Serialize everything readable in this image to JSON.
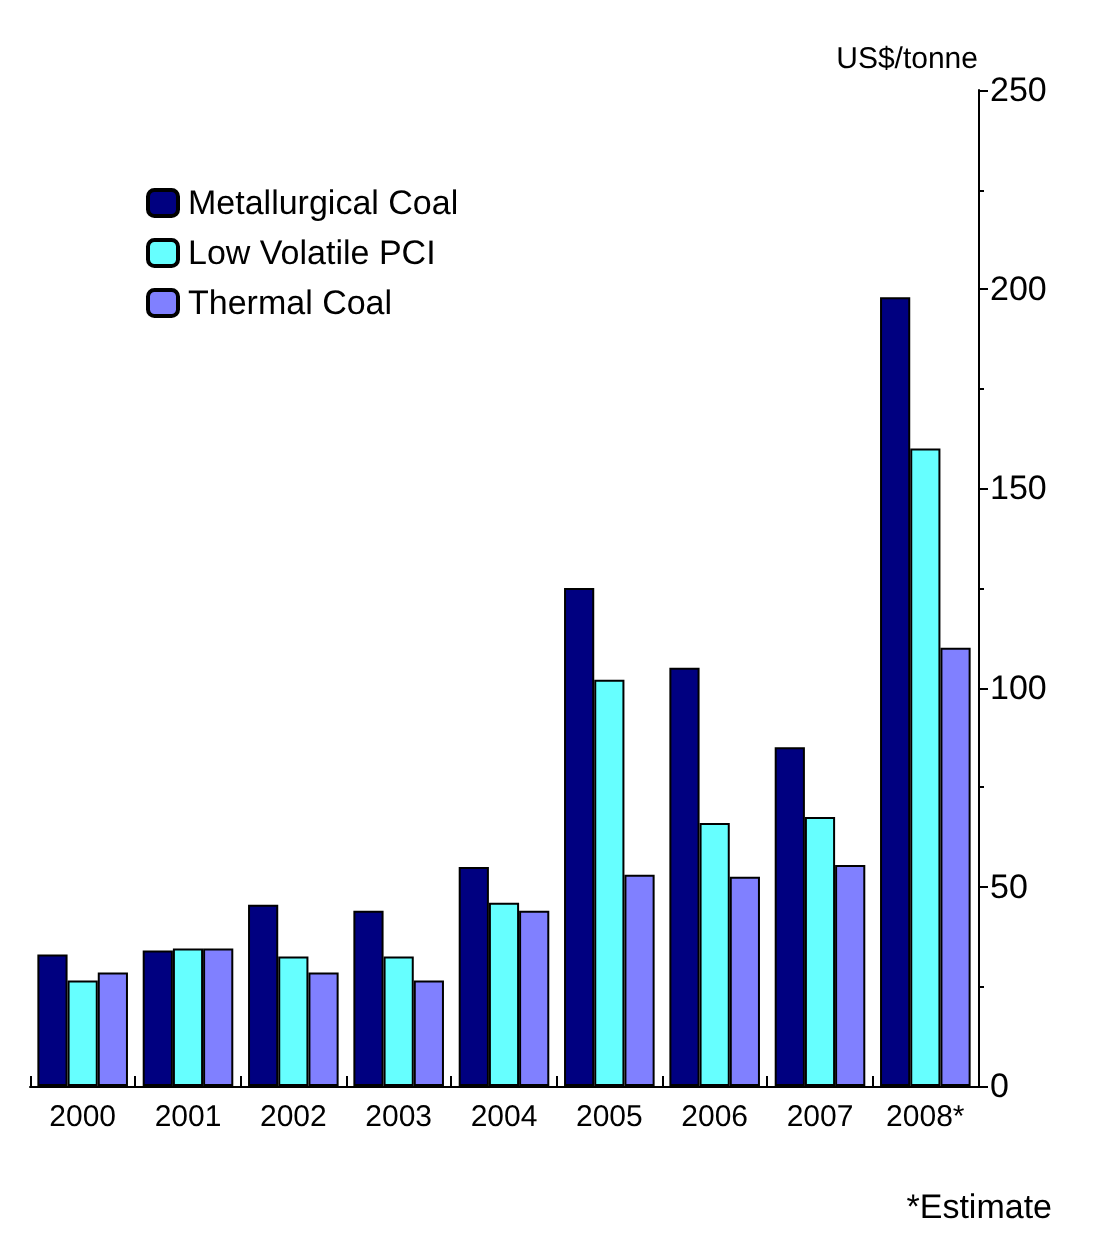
{
  "chart_data": {
    "type": "bar",
    "ylabel": "US$/tonne",
    "categories": [
      "2000",
      "2001",
      "2002",
      "2003",
      "2004",
      "2005",
      "2006",
      "2007",
      "2008*"
    ],
    "series": [
      {
        "name": "Metallurgical Coal",
        "color": "#000080",
        "values": [
          33,
          34,
          45.5,
          44,
          55,
          125,
          105,
          85,
          198
        ]
      },
      {
        "name": "Low Volatile PCI",
        "color": "#66ffff",
        "values": [
          26.5,
          34.5,
          32.5,
          32.5,
          46,
          102,
          66,
          67.5,
          160
        ]
      },
      {
        "name": "Thermal Coal",
        "color": "#8080ff",
        "values": [
          28.5,
          34.5,
          28.5,
          26.5,
          44,
          53,
          52.5,
          55.5,
          110
        ]
      }
    ],
    "ylim": [
      0,
      250
    ],
    "yticks": [
      0,
      50,
      100,
      150,
      200,
      250
    ],
    "legend": "top left",
    "grid": false,
    "annotations": [
      "*Estimate"
    ]
  }
}
